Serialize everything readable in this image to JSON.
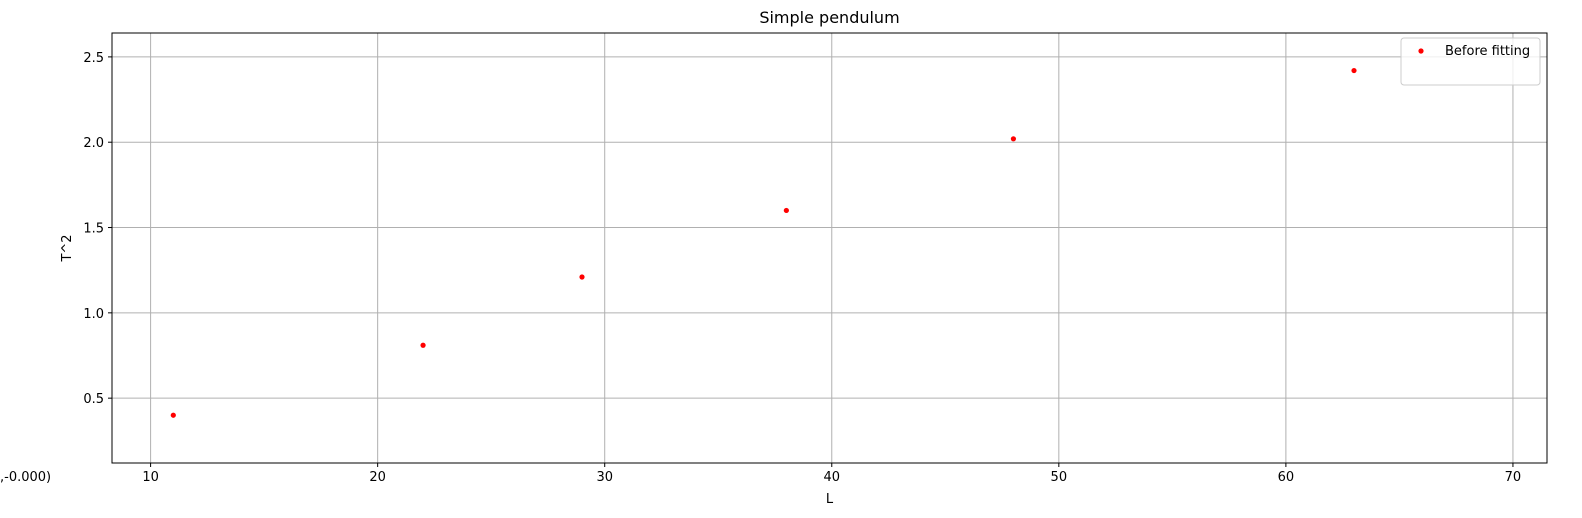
{
  "chart_data": {
    "type": "scatter",
    "title": "Simple pendulum",
    "xlabel": "L",
    "ylabel": "T^2",
    "xlim": [
      8.3,
      71.5
    ],
    "ylim": [
      0.12,
      2.64
    ],
    "xticks": [
      10,
      20,
      30,
      40,
      50,
      60,
      70
    ],
    "yticks": [
      0.5,
      1.0,
      1.5,
      2.0,
      2.5
    ],
    "grid": true,
    "legend_position": "top-right",
    "series": [
      {
        "name": "Before fitting",
        "color": "#ff0000",
        "marker": "dot",
        "x": [
          11,
          22,
          29,
          38,
          48,
          63
        ],
        "y": [
          0.4,
          0.81,
          1.21,
          1.6,
          2.02,
          2.42
        ]
      }
    ]
  },
  "corner_readout": ",-0.000)"
}
